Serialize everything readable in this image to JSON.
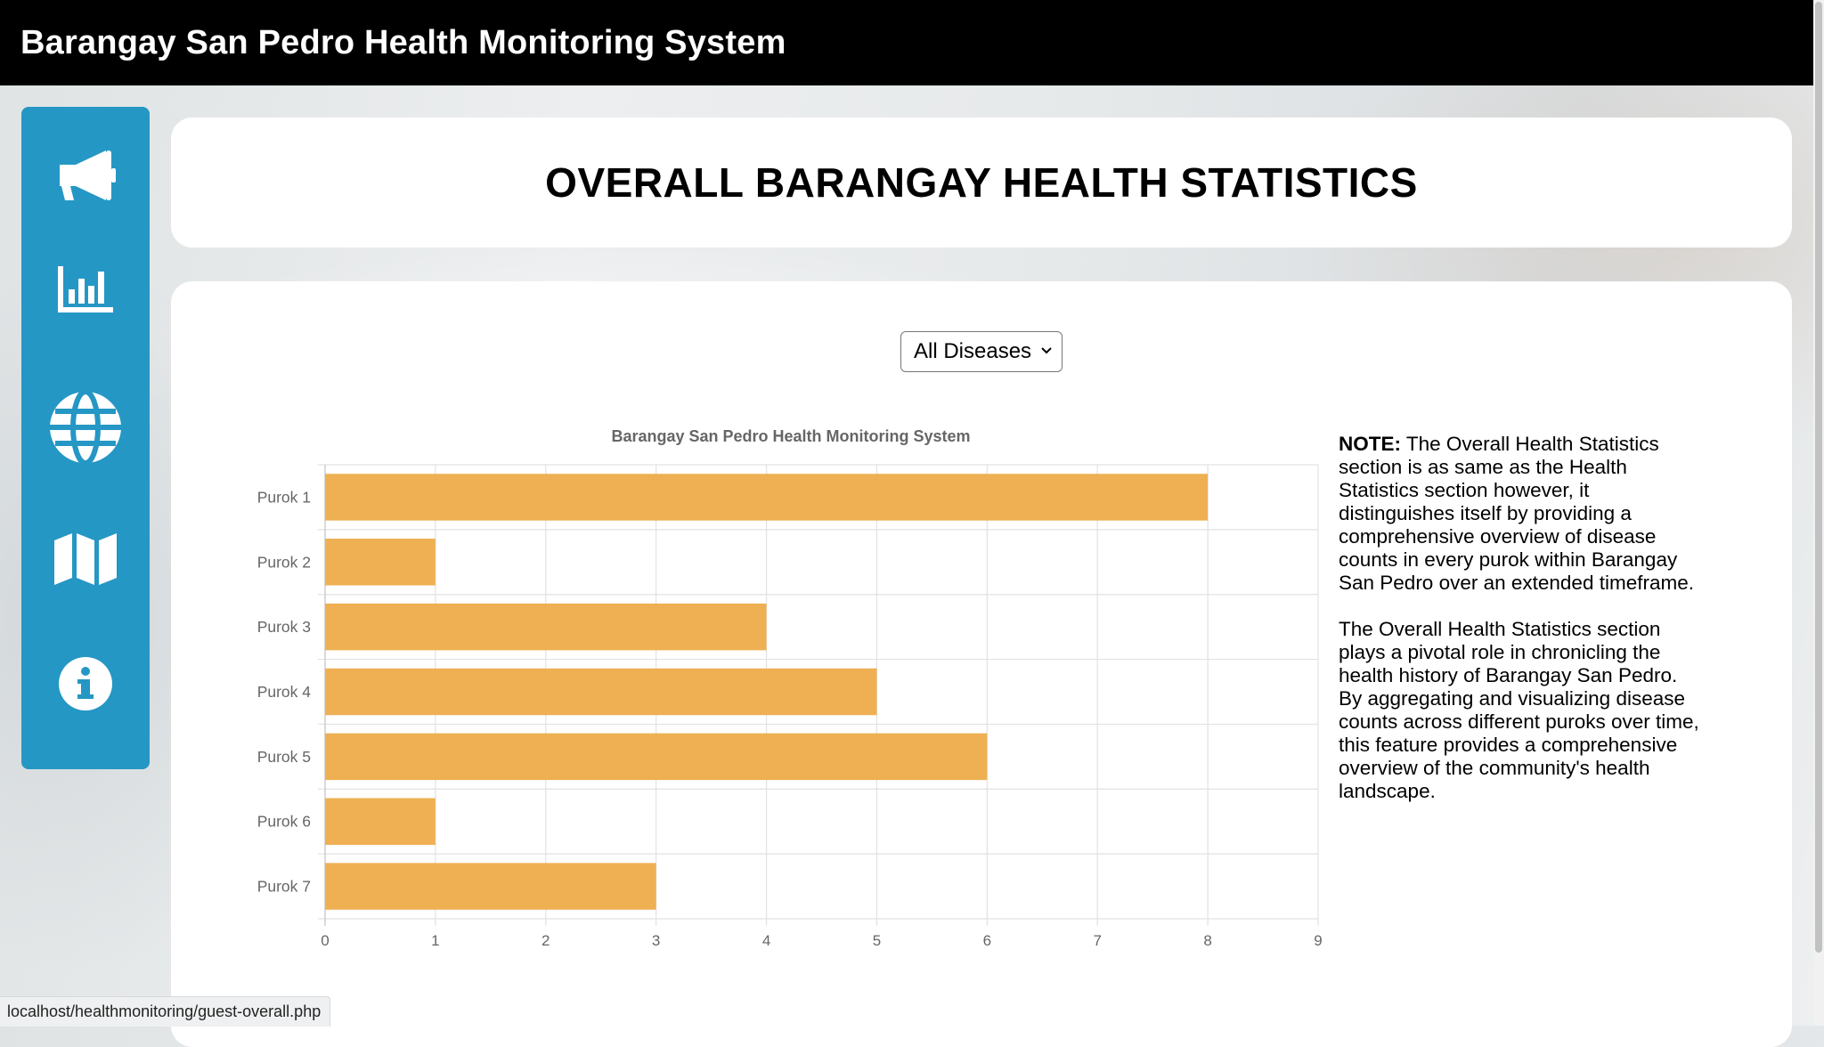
{
  "header": {
    "title": "Barangay San Pedro Health Monitoring System"
  },
  "sidebar": {
    "items": [
      {
        "name": "announcements",
        "icon": "megaphone-icon"
      },
      {
        "name": "health-statistics",
        "icon": "bar-chart-icon"
      },
      {
        "name": "overall-statistics",
        "icon": "globe-icon"
      },
      {
        "name": "map",
        "icon": "map-icon"
      },
      {
        "name": "about",
        "icon": "info-icon"
      }
    ]
  },
  "page": {
    "heading": "OVERALL BARANGAY HEALTH STATISTICS"
  },
  "filter": {
    "selected": "All Diseases"
  },
  "note": {
    "label": "NOTE:",
    "paragraph1": "The Overall Health Statistics section is as same as the Health Statistics section however, it distinguishes itself by providing a comprehensive overview of disease counts in every purok within Barangay San Pedro over an extended timeframe.",
    "paragraph2": "The Overall Health Statistics section plays a pivotal role in chronicling the health history of Barangay San Pedro. By aggregating and visualizing disease counts across different puroks over time, this feature provides a comprehensive overview of the community's health landscape."
  },
  "chart_data": {
    "type": "bar",
    "orientation": "horizontal",
    "title": "Barangay San Pedro Health Monitoring System",
    "categories": [
      "Purok 1",
      "Purok 2",
      "Purok 3",
      "Purok 4",
      "Purok 5",
      "Purok 6",
      "Purok 7"
    ],
    "values": [
      8,
      1,
      4,
      5,
      6,
      1,
      3
    ],
    "xlim": [
      0,
      9
    ],
    "xticks": [
      "0",
      "1",
      "2",
      "3",
      "4",
      "5",
      "6",
      "7",
      "8",
      "9"
    ],
    "grid": true,
    "legend": "none",
    "bar_color": "#eeb052"
  },
  "status_url": "localhost/healthmonitoring/guest-overall.php",
  "colors": {
    "sidebar": "#2597c4",
    "icon": "#ffffff",
    "topbar": "#000000",
    "bar": "#eeb052"
  }
}
